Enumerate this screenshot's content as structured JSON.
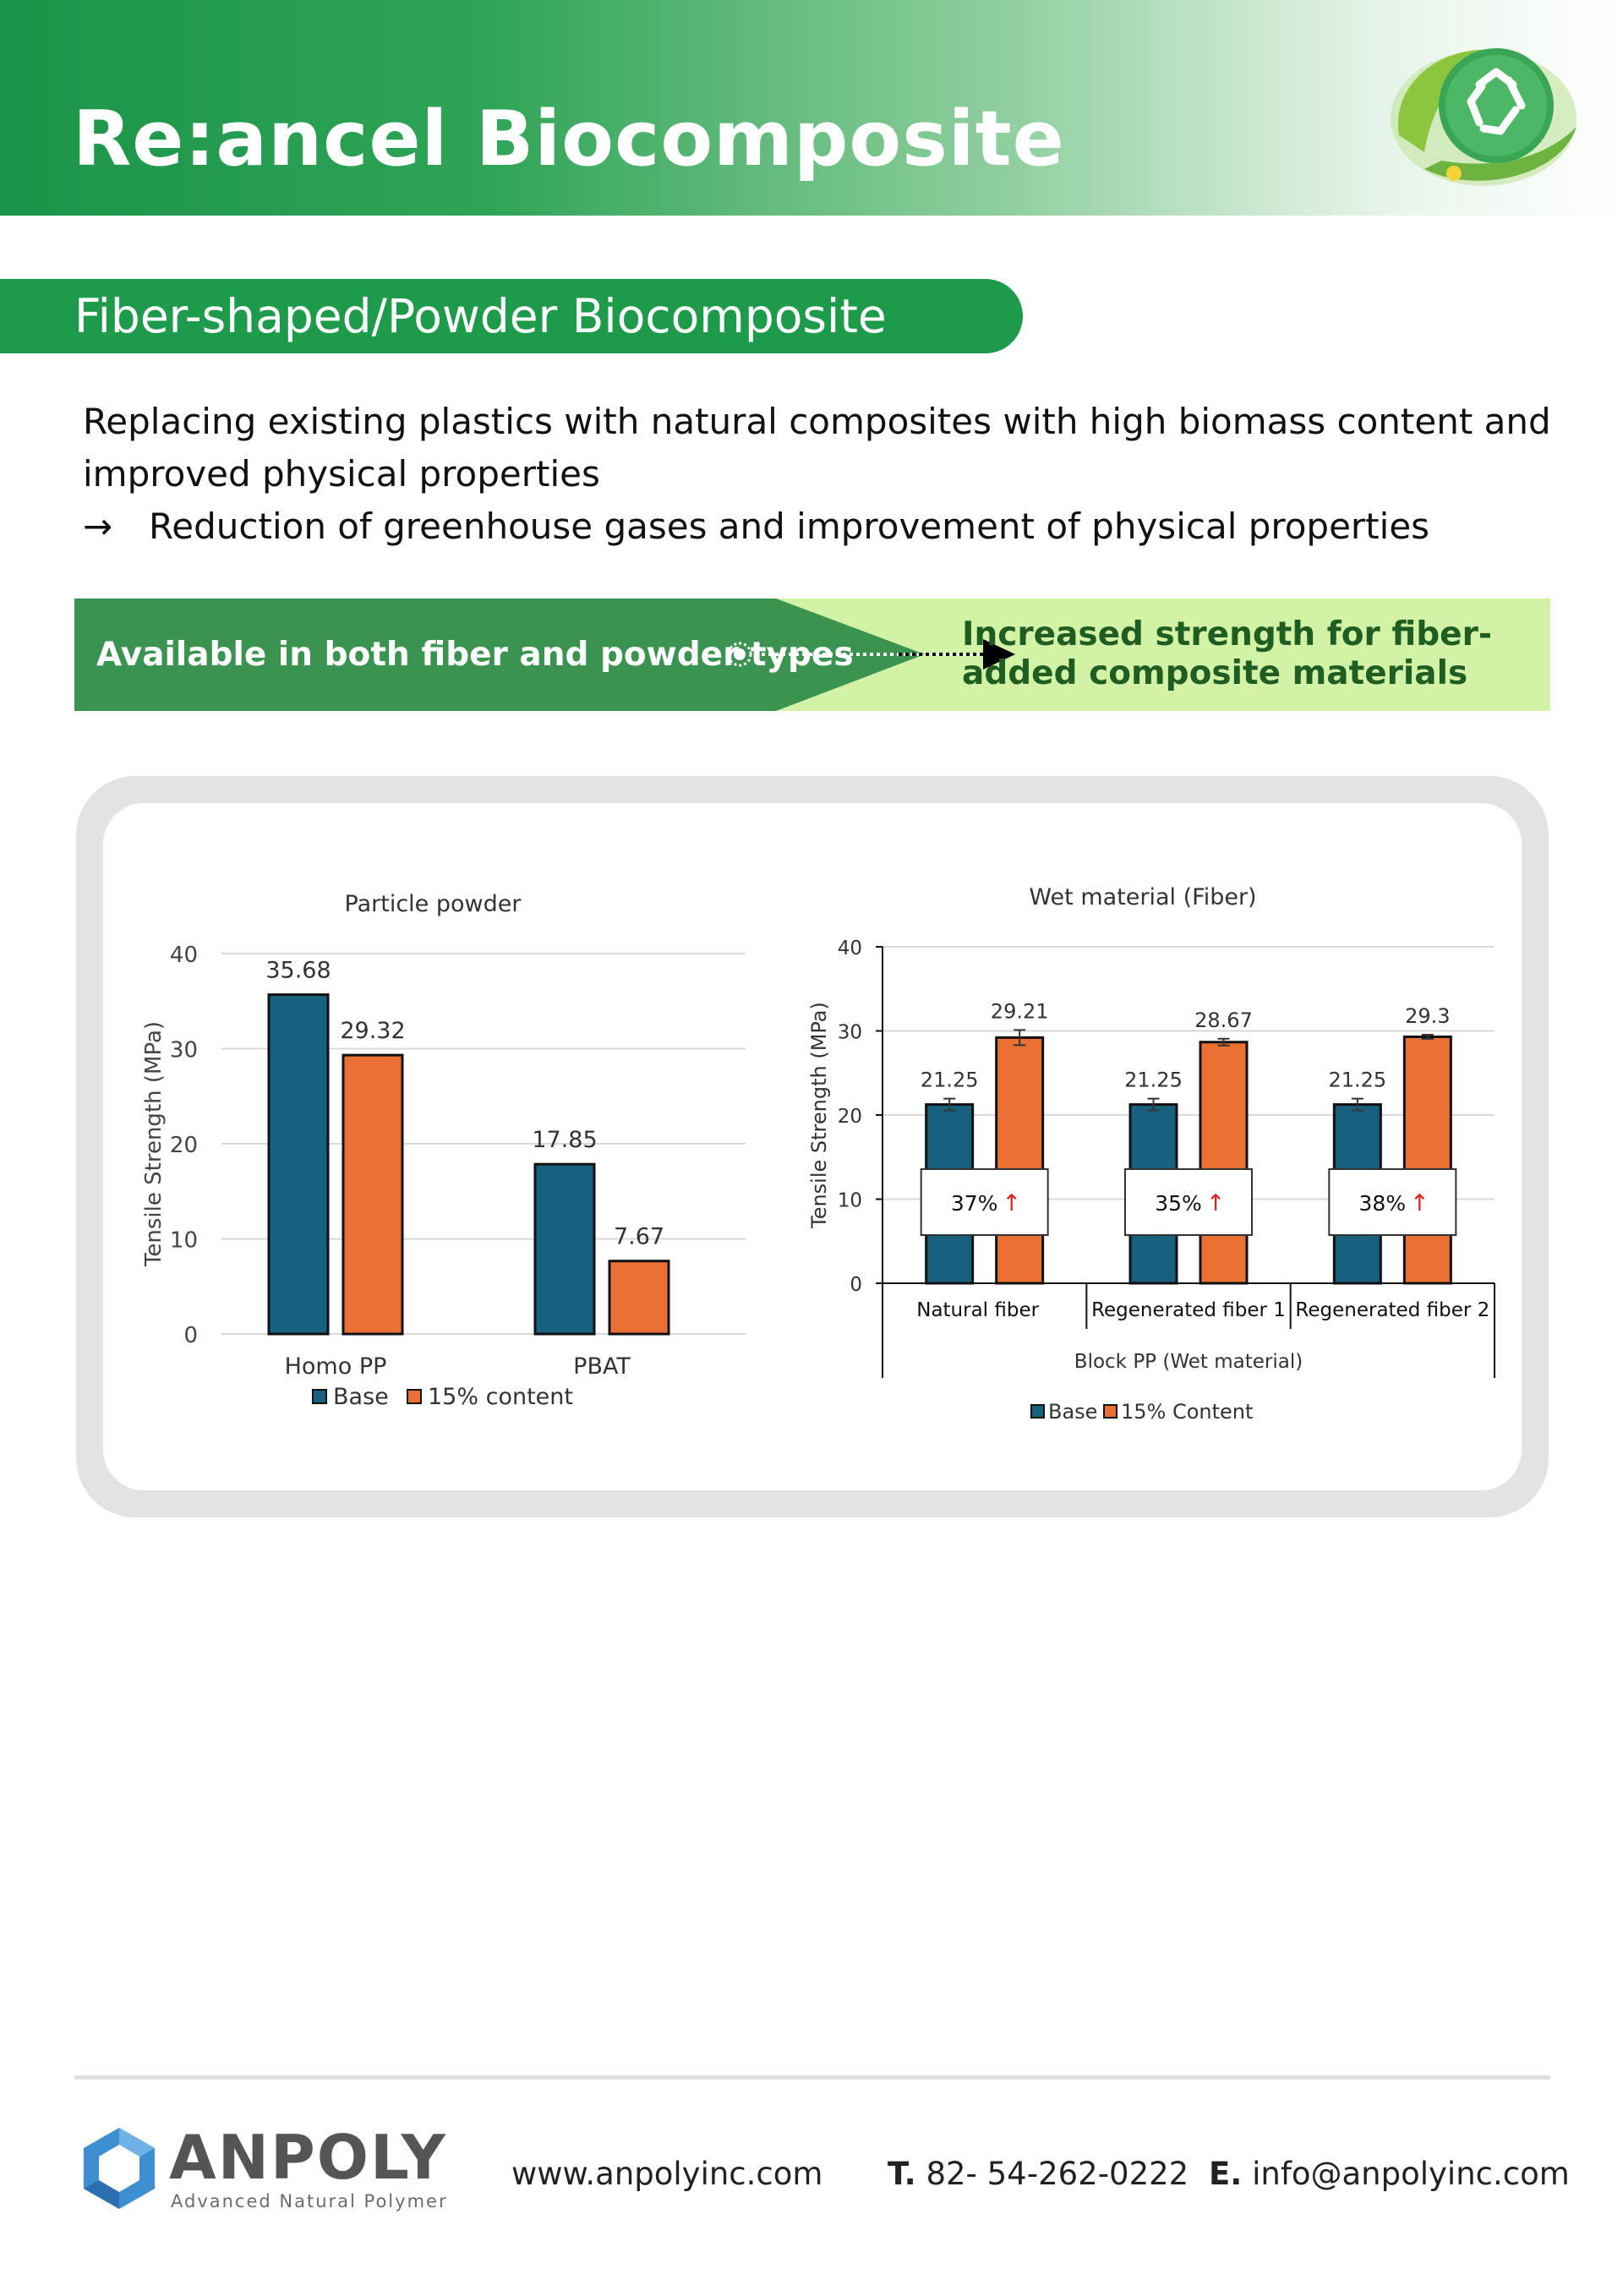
{
  "header": {
    "title": "Re:ancel Biocomposite",
    "colors": {
      "brand_green": "#1e9a4b",
      "accent_light": "#d2f3a6"
    },
    "logo_icon": "recycle-leaf-icon"
  },
  "section": {
    "title": "Fiber-shaped/Powder Biocomposite"
  },
  "intro": {
    "line1": "Replacing existing plastics with natural composites with high biomass content and improved physical properties",
    "arrow": "→",
    "line2": "Reduction of greenhouse gases and improvement of physical properties"
  },
  "band": {
    "left": "Available in both fiber and powder types",
    "right": "Increased strength for fiber-added composite materials"
  },
  "chart_data": [
    {
      "type": "bar",
      "title": "Particle powder",
      "ylabel": "Tensile Strength (MPa)",
      "xlabel": "",
      "ylim": [
        0,
        40
      ],
      "yticks": [
        0,
        10,
        20,
        30,
        40
      ],
      "categories": [
        "Homo PP",
        "PBAT"
      ],
      "series": [
        {
          "name": "Base",
          "values": [
            35.68,
            17.85
          ],
          "labels": [
            "35.68",
            "17.85"
          ],
          "color": "#17607f"
        },
        {
          "name": "15% content",
          "values": [
            29.32,
            7.67
          ],
          "labels": [
            "29.32",
            "7.67"
          ],
          "color": "#ea7133"
        }
      ],
      "grid": true,
      "legend": "bottom"
    },
    {
      "type": "bar",
      "title": "Wet material (Fiber)",
      "ylabel": "Tensile Strength (MPa)",
      "xlabel": "Block PP (Wet material)",
      "ylim": [
        0,
        40
      ],
      "yticks": [
        0,
        10,
        20,
        30,
        40
      ],
      "categories": [
        "Natural fiber",
        "Regenerated fiber 1",
        "Regenerated fiber 2"
      ],
      "series": [
        {
          "name": "Base",
          "values": [
            21.25,
            21.25,
            21.25
          ],
          "labels": [
            "21.25",
            "21.25",
            "21.25"
          ],
          "errors": [
            0.7,
            0.7,
            0.7
          ],
          "color": "#17607f"
        },
        {
          "name": "15% Content",
          "values": [
            29.21,
            28.67,
            29.3
          ],
          "labels": [
            "29.21",
            "28.67",
            "29.3"
          ],
          "errors": [
            0.9,
            0.4,
            0.25
          ],
          "color": "#ea7133"
        }
      ],
      "annotations": [
        "37%",
        "35%",
        "38%"
      ],
      "annotation_arrow": "↑",
      "annotation_color": "#e0201c",
      "grid": true,
      "legend": "bottom"
    }
  ],
  "footer": {
    "brand": "ANPOLY",
    "tagline": "Advanced Natural Polymer",
    "logo_icon": "hexagon-logo-icon",
    "website": "www.anpolyinc.com",
    "phone_label": "T.",
    "phone": "82- 54-262-0222",
    "email_label": "E.",
    "email": "info@anpolyinc.com"
  }
}
